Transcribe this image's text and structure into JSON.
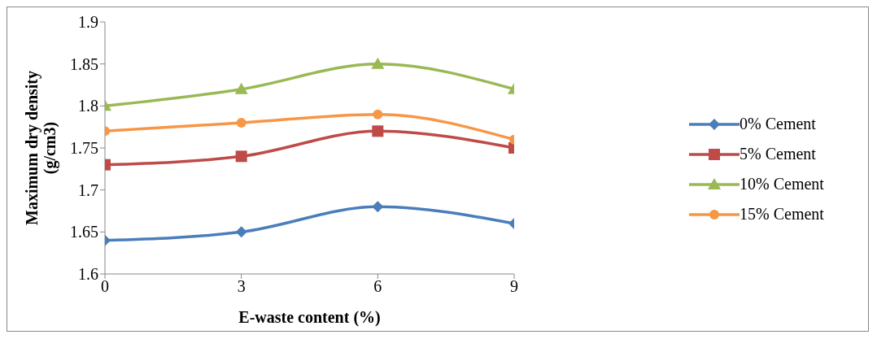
{
  "chart_data": {
    "type": "line",
    "xlabel": "E-waste content (%)",
    "ylabel": "Maximum dry density\n(g/cm3)",
    "x": [
      0,
      3,
      6,
      9
    ],
    "xlim": [
      0,
      9
    ],
    "xticks": [
      0,
      3,
      6,
      9
    ],
    "ylim": [
      1.6,
      1.9
    ],
    "yticks": [
      1.6,
      1.65,
      1.7,
      1.75,
      1.8,
      1.85,
      1.9
    ],
    "grid": false,
    "legend": "right",
    "line_style": "solid",
    "series": [
      {
        "name": "0% Cement",
        "color": "#4a7ebb",
        "marker": "diamond",
        "values": [
          1.64,
          1.65,
          1.68,
          1.66
        ]
      },
      {
        "name": "5% Cement",
        "color": "#be4b48",
        "marker": "square",
        "values": [
          1.73,
          1.74,
          1.77,
          1.75
        ]
      },
      {
        "name": "10% Cement",
        "color": "#98b954",
        "marker": "triangle",
        "values": [
          1.8,
          1.82,
          1.85,
          1.82
        ]
      },
      {
        "name": "15% Cement",
        "color": "#f79646",
        "marker": "circle",
        "values": [
          1.77,
          1.78,
          1.79,
          1.76
        ]
      }
    ]
  }
}
